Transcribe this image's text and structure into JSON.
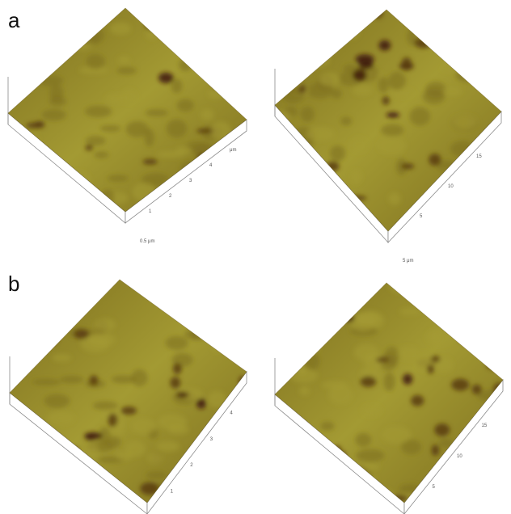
{
  "figure": {
    "panels": [
      {
        "label": "a",
        "plots": [
          {
            "axis_label": "0.5 μm",
            "ticks": [
              "1",
              "2",
              "3",
              "4",
              "μm"
            ]
          },
          {
            "axis_label": "5 μm",
            "ticks": [
              "5",
              "10",
              "15"
            ]
          }
        ]
      },
      {
        "label": "b",
        "plots": [
          {
            "axis_label": "μm",
            "ticks": [
              "1",
              "2",
              "3",
              "4"
            ]
          },
          {
            "axis_label": "μm",
            "ticks": [
              "5",
              "10",
              "15"
            ]
          }
        ]
      }
    ],
    "colors": {
      "surface_light": "#a39a33",
      "surface_mid": "#7e6f1e",
      "surface_dark": "#5a3d12",
      "pit": "#3e1a0c",
      "axis": "#8a8a8a"
    }
  }
}
